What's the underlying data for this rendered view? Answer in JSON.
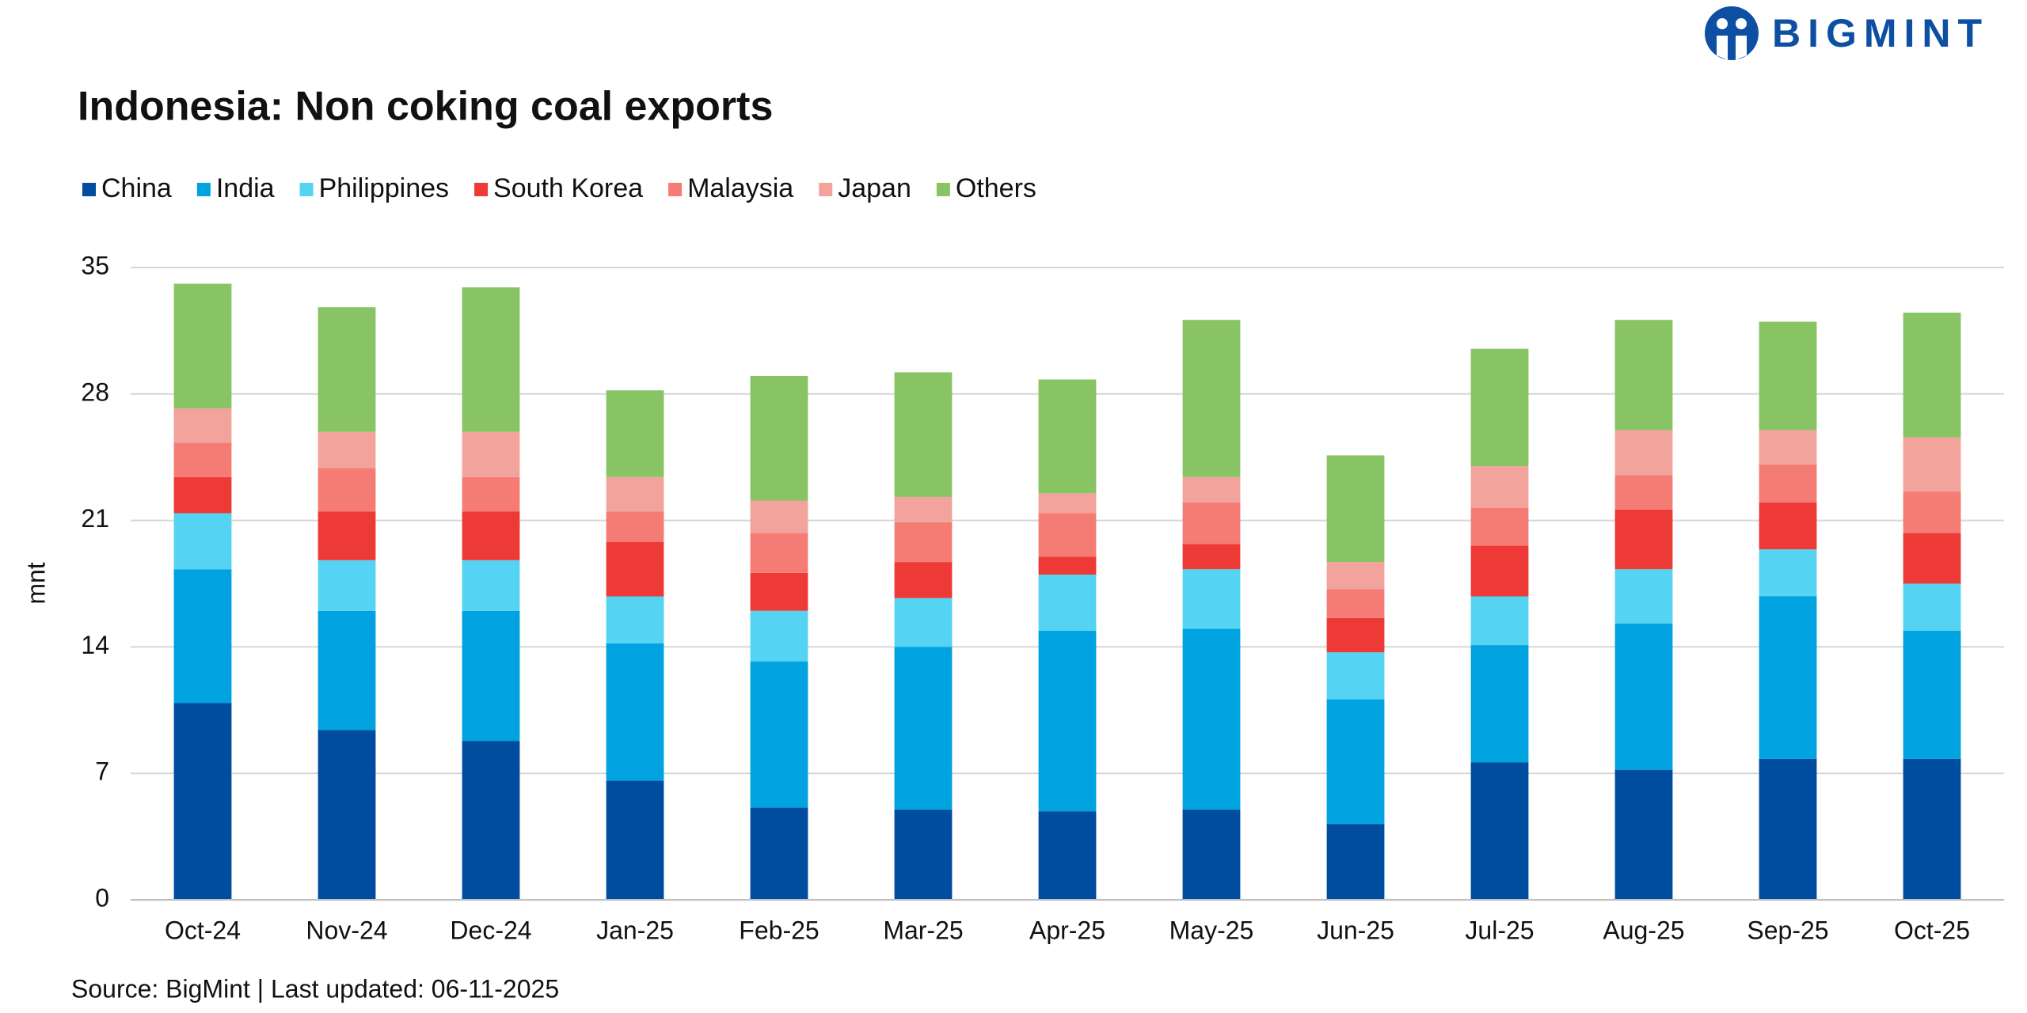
{
  "logo": "BIGMINT",
  "chart_data": {
    "type": "stacked_bar",
    "title": "Indonesia: Non coking coal exports",
    "y_label": "mnt",
    "source": "Source: BigMint | Last updated: 06-11-2025",
    "categories": [
      "Oct-24",
      "Nov-24",
      "Dec-24",
      "Jan-25",
      "Feb-25",
      "Mar-25",
      "Apr-25",
      "May-25",
      "Jun-25",
      "Jul-25",
      "Aug-25",
      "Sep-25",
      "Oct-25"
    ],
    "series": [
      {
        "name": "China",
        "color": "#004c9e",
        "values": [
          10.9,
          9.4,
          8.8,
          6.6,
          5.1,
          5.0,
          4.9,
          5.0,
          4.2,
          7.6,
          7.2,
          7.8,
          7.8
        ]
      },
      {
        "name": "India",
        "color": "#00a2e0",
        "values": [
          7.4,
          6.6,
          7.2,
          7.6,
          8.1,
          9.0,
          10.0,
          10.0,
          6.9,
          6.5,
          8.1,
          9.0,
          7.1
        ]
      },
      {
        "name": "Philippines",
        "color": "#55d3f2",
        "values": [
          3.1,
          2.8,
          2.8,
          2.6,
          2.8,
          2.7,
          3.1,
          3.3,
          2.6,
          2.7,
          3.0,
          2.6,
          2.6
        ]
      },
      {
        "name": "South Korea",
        "color": "#ee3a36",
        "values": [
          2.0,
          2.7,
          2.7,
          3.0,
          2.1,
          2.0,
          1.0,
          1.4,
          1.9,
          2.8,
          3.3,
          2.6,
          2.8
        ]
      },
      {
        "name": "Malaysia",
        "color": "#f47c75",
        "values": [
          1.9,
          2.4,
          1.9,
          1.7,
          2.2,
          2.2,
          2.4,
          2.3,
          1.6,
          2.1,
          1.9,
          2.1,
          2.3
        ]
      },
      {
        "name": "Japan",
        "color": "#f2a39c",
        "values": [
          1.9,
          2.0,
          2.5,
          1.9,
          1.8,
          1.4,
          1.1,
          1.4,
          1.5,
          2.3,
          2.5,
          1.9,
          3.0
        ]
      },
      {
        "name": "Others",
        "color": "#88c463",
        "values": [
          6.9,
          6.9,
          8.0,
          4.8,
          6.9,
          6.9,
          6.3,
          8.7,
          5.9,
          6.5,
          6.1,
          6.0,
          6.9
        ]
      }
    ],
    "ylim": [
      0,
      35
    ],
    "yticks": [
      0,
      7,
      14,
      21,
      28,
      35
    ],
    "grid": true,
    "legend": "top-left"
  }
}
